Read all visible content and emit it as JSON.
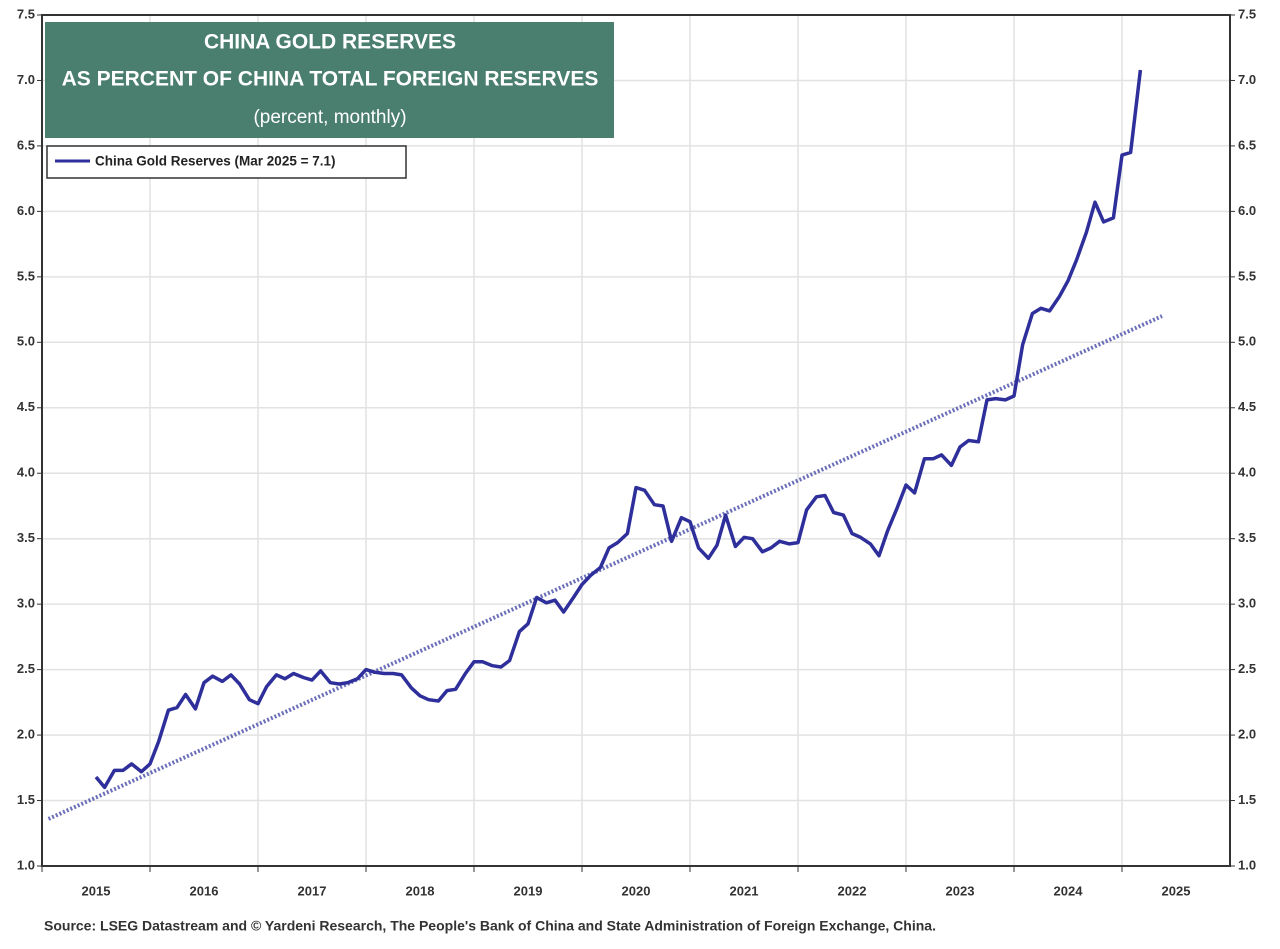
{
  "chart_data": {
    "type": "line",
    "title": "CHINA GOLD RESERVES",
    "subtitle": "AS PERCENT OF CHINA TOTAL FOREIGN RESERVES",
    "units_note": "(percent, monthly)",
    "source": "Source: LSEG Datastream and © Yardeni Research, The People's Bank of China and State Administration of Foreign Exchange, China.",
    "xlim": [
      2015,
      2026
    ],
    "xticks": [
      2015,
      2016,
      2017,
      2018,
      2019,
      2020,
      2021,
      2022,
      2023,
      2024,
      2025
    ],
    "ylim": [
      1,
      7.5
    ],
    "yticks": [
      {
        "value": 1,
        "label": "1.0"
      },
      {
        "value": 1.5,
        "label": "1.5"
      },
      {
        "value": 2,
        "label": "2.0"
      },
      {
        "value": 2.5,
        "label": "2.5"
      },
      {
        "value": 3,
        "label": "3.0"
      },
      {
        "value": 3.5,
        "label": "3.5"
      },
      {
        "value": 4,
        "label": "4.0"
      },
      {
        "value": 4.5,
        "label": "4.5"
      },
      {
        "value": 5,
        "label": "5.0"
      },
      {
        "value": 5.5,
        "label": "5.5"
      },
      {
        "value": 6,
        "label": "6.0"
      },
      {
        "value": 6.5,
        "label": "6.5"
      },
      {
        "value": 7,
        "label": "7.0"
      },
      {
        "value": 7.5,
        "label": "7.5"
      }
    ],
    "grid": true,
    "legend": "top-left",
    "series": [
      {
        "name": "China Gold Reserves (Mar 2025 = 7.1)",
        "color": "#2e2f9a",
        "x": [
          2015.5,
          2015.58,
          2015.67,
          2015.75,
          2015.83,
          2015.92,
          2016.0,
          2016.08,
          2016.17,
          2016.25,
          2016.33,
          2016.42,
          2016.5,
          2016.58,
          2016.67,
          2016.75,
          2016.83,
          2016.92,
          2017.0,
          2017.08,
          2017.17,
          2017.25,
          2017.33,
          2017.42,
          2017.5,
          2017.58,
          2017.67,
          2017.75,
          2017.83,
          2017.92,
          2018.0,
          2018.08,
          2018.17,
          2018.25,
          2018.33,
          2018.42,
          2018.5,
          2018.58,
          2018.67,
          2018.75,
          2018.83,
          2018.92,
          2019.0,
          2019.08,
          2019.17,
          2019.25,
          2019.33,
          2019.42,
          2019.5,
          2019.58,
          2019.67,
          2019.75,
          2019.83,
          2019.92,
          2020.0,
          2020.08,
          2020.17,
          2020.25,
          2020.33,
          2020.42,
          2020.5,
          2020.58,
          2020.67,
          2020.75,
          2020.83,
          2020.92,
          2021.0,
          2021.08,
          2021.17,
          2021.25,
          2021.33,
          2021.42,
          2021.5,
          2021.58,
          2021.67,
          2021.75,
          2021.83,
          2021.92,
          2022.0,
          2022.08,
          2022.17,
          2022.25,
          2022.33,
          2022.42,
          2022.5,
          2022.58,
          2022.67,
          2022.75,
          2022.83,
          2022.92,
          2023.0,
          2023.08,
          2023.17,
          2023.25,
          2023.33,
          2023.42,
          2023.5,
          2023.58,
          2023.67,
          2023.75,
          2023.83,
          2023.92,
          2024.0,
          2024.08,
          2024.17,
          2024.25,
          2024.33,
          2024.42,
          2024.5,
          2024.58,
          2024.67,
          2024.75,
          2024.83,
          2024.92,
          2025.0,
          2025.08,
          2025.17
        ],
        "values": [
          1.68,
          1.6,
          1.73,
          1.73,
          1.78,
          1.72,
          1.78,
          1.95,
          2.19,
          2.21,
          2.31,
          2.2,
          2.4,
          2.45,
          2.41,
          2.46,
          2.39,
          2.27,
          2.24,
          2.37,
          2.46,
          2.43,
          2.47,
          2.44,
          2.42,
          2.49,
          2.4,
          2.39,
          2.4,
          2.43,
          2.5,
          2.48,
          2.47,
          2.47,
          2.46,
          2.36,
          2.3,
          2.27,
          2.26,
          2.34,
          2.35,
          2.47,
          2.56,
          2.56,
          2.53,
          2.52,
          2.57,
          2.79,
          2.85,
          3.05,
          3.01,
          3.03,
          2.94,
          3.05,
          3.15,
          3.22,
          3.28,
          3.43,
          3.47,
          3.54,
          3.89,
          3.87,
          3.76,
          3.75,
          3.48,
          3.66,
          3.63,
          3.43,
          3.35,
          3.45,
          3.68,
          3.44,
          3.51,
          3.5,
          3.4,
          3.43,
          3.48,
          3.46,
          3.47,
          3.72,
          3.82,
          3.83,
          3.7,
          3.68,
          3.54,
          3.51,
          3.46,
          3.37,
          3.56,
          3.74,
          3.91,
          3.85,
          4.11,
          4.11,
          4.14,
          4.06,
          4.2,
          4.25,
          4.24,
          4.56,
          4.57,
          4.56,
          4.59,
          4.98,
          5.22,
          5.26,
          5.24,
          5.35,
          5.47,
          5.63,
          5.84,
          6.07,
          5.92,
          5.95,
          6.43,
          6.45,
          7.08
        ]
      }
    ],
    "trend": {
      "color": "#6b6fb8",
      "style": "dotted",
      "x": [
        2015.06,
        2025.37
      ],
      "values": [
        1.36,
        5.2
      ]
    }
  }
}
